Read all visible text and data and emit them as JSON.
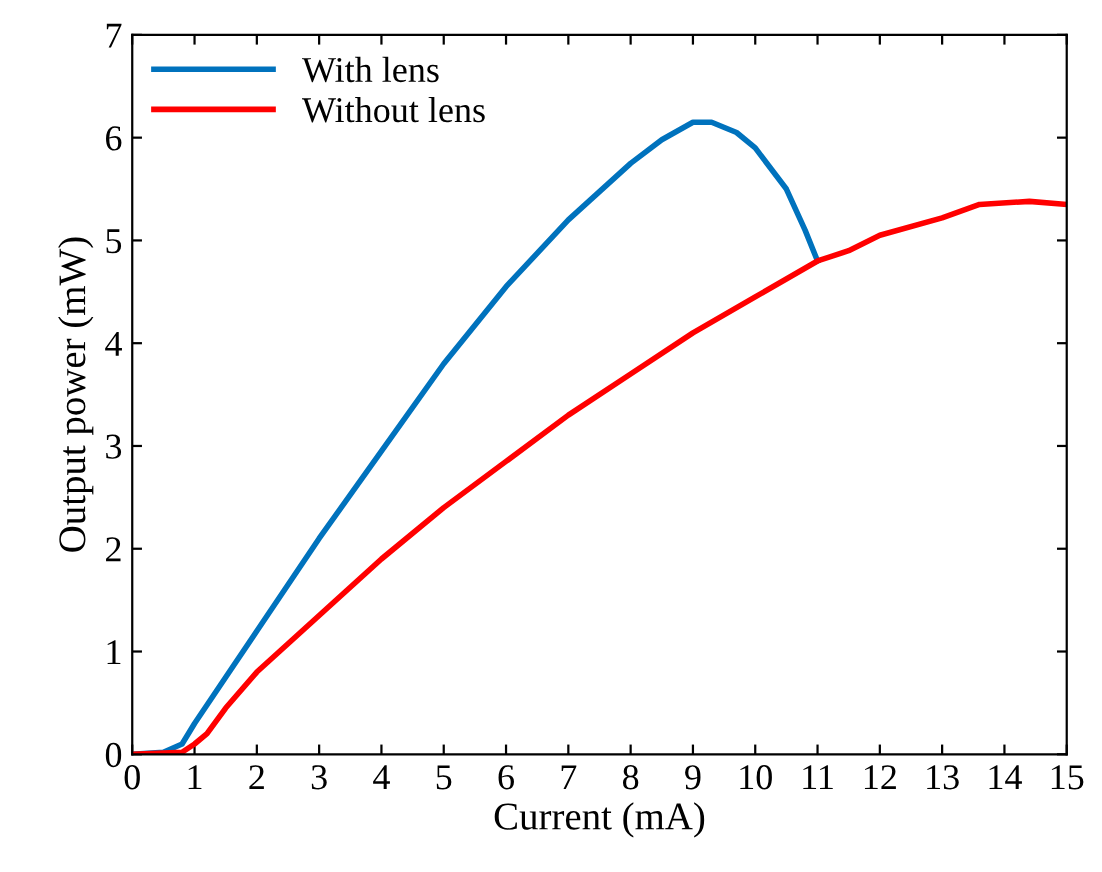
{
  "chart_data": {
    "type": "line",
    "xlabel": "Current (mA)",
    "ylabel": "Output power (mW)",
    "xlim": [
      0,
      15
    ],
    "ylim": [
      0,
      7
    ],
    "xticks": [
      0,
      1,
      2,
      3,
      4,
      5,
      6,
      7,
      8,
      9,
      10,
      11,
      12,
      13,
      14,
      15
    ],
    "yticks": [
      0,
      1,
      2,
      3,
      4,
      5,
      6,
      7
    ],
    "grid": false,
    "legend": "top left",
    "marker": "none",
    "line_style": "solid",
    "series": [
      {
        "name": "With lens",
        "color": "#0072bd",
        "x": [
          0,
          0.5,
          0.8,
          1,
          1.5,
          2,
          3,
          4,
          5,
          6,
          7,
          8,
          8.5,
          9,
          9.3,
          9.7,
          10,
          10.5,
          10.8,
          11
        ],
        "values": [
          0,
          0.02,
          0.1,
          0.3,
          0.75,
          1.2,
          2.1,
          2.95,
          3.8,
          4.55,
          5.2,
          5.75,
          5.98,
          6.15,
          6.15,
          6.05,
          5.9,
          5.5,
          5.1,
          4.8
        ]
      },
      {
        "name": "Without lens",
        "color": "#ff0000",
        "x": [
          0,
          0.8,
          1,
          1.2,
          1.5,
          2,
          3,
          4,
          5,
          6,
          7,
          8,
          9,
          10,
          11,
          11.5,
          12,
          13,
          13.6,
          14.4,
          15
        ],
        "values": [
          0,
          0.02,
          0.1,
          0.2,
          0.45,
          0.8,
          1.35,
          1.9,
          2.4,
          2.85,
          3.3,
          3.7,
          4.1,
          4.45,
          4.8,
          4.9,
          5.05,
          5.22,
          5.35,
          5.38,
          5.35
        ]
      }
    ]
  }
}
